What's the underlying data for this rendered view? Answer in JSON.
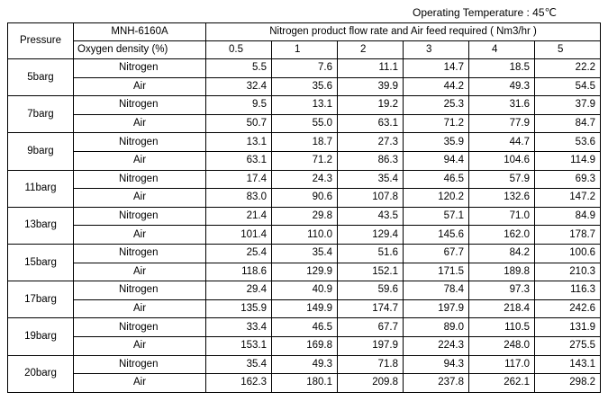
{
  "operating_temperature": "Operating Temperature : 45℃",
  "table": {
    "pressure_header": "Pressure",
    "model": "MNH-6160A",
    "flow_header": "Nitrogen product flow rate and Air feed required ( Nm3/hr )",
    "oxygen_label": "Oxygen density (%)",
    "oxygen_levels": [
      "0.5",
      "1",
      "2",
      "3",
      "4",
      "5"
    ],
    "rows": [
      {
        "pressure": "5barg",
        "nitrogen_label": "Nitrogen",
        "nitrogen": [
          "5.5",
          "7.6",
          "11.1",
          "14.7",
          "18.5",
          "22.2"
        ],
        "air_label": "Air",
        "air": [
          "32.4",
          "35.6",
          "39.9",
          "44.2",
          "49.3",
          "54.5"
        ]
      },
      {
        "pressure": "7barg",
        "nitrogen_label": "Nitrogen",
        "nitrogen": [
          "9.5",
          "13.1",
          "19.2",
          "25.3",
          "31.6",
          "37.9"
        ],
        "air_label": "Air",
        "air": [
          "50.7",
          "55.0",
          "63.1",
          "71.2",
          "77.9",
          "84.7"
        ]
      },
      {
        "pressure": "9barg",
        "nitrogen_label": "Nitrogen",
        "nitrogen": [
          "13.1",
          "18.7",
          "27.3",
          "35.9",
          "44.7",
          "53.6"
        ],
        "air_label": "Air",
        "air": [
          "63.1",
          "71.2",
          "86.3",
          "94.4",
          "104.6",
          "114.9"
        ]
      },
      {
        "pressure": "11barg",
        "nitrogen_label": "Nitrogen",
        "nitrogen": [
          "17.4",
          "24.3",
          "35.4",
          "46.5",
          "57.9",
          "69.3"
        ],
        "air_label": "Air",
        "air": [
          "83.0",
          "90.6",
          "107.8",
          "120.2",
          "132.6",
          "147.2"
        ]
      },
      {
        "pressure": "13barg",
        "nitrogen_label": "Nitrogen",
        "nitrogen": [
          "21.4",
          "29.8",
          "43.5",
          "57.1",
          "71.0",
          "84.9"
        ],
        "air_label": "Air",
        "air": [
          "101.4",
          "110.0",
          "129.4",
          "145.6",
          "162.0",
          "178.7"
        ]
      },
      {
        "pressure": "15barg",
        "nitrogen_label": "Nitrogen",
        "nitrogen": [
          "25.4",
          "35.4",
          "51.6",
          "67.7",
          "84.2",
          "100.6"
        ],
        "air_label": "Air",
        "air": [
          "118.6",
          "129.9",
          "152.1",
          "171.5",
          "189.8",
          "210.3"
        ]
      },
      {
        "pressure": "17barg",
        "nitrogen_label": "Nitrogen",
        "nitrogen": [
          "29.4",
          "40.9",
          "59.6",
          "78.4",
          "97.3",
          "116.3"
        ],
        "air_label": "Air",
        "air": [
          "135.9",
          "149.9",
          "174.7",
          "197.9",
          "218.4",
          "242.6"
        ]
      },
      {
        "pressure": "19barg",
        "nitrogen_label": "Nitrogen",
        "nitrogen": [
          "33.4",
          "46.5",
          "67.7",
          "89.0",
          "110.5",
          "131.9"
        ],
        "air_label": "Air",
        "air": [
          "153.1",
          "169.8",
          "197.9",
          "224.3",
          "248.0",
          "275.5"
        ]
      },
      {
        "pressure": "20barg",
        "nitrogen_label": "Nitrogen",
        "nitrogen": [
          "35.4",
          "49.3",
          "71.8",
          "94.3",
          "117.0",
          "143.1"
        ],
        "air_label": "Air",
        "air": [
          "162.3",
          "180.1",
          "209.8",
          "237.8",
          "262.1",
          "298.2"
        ]
      }
    ]
  }
}
